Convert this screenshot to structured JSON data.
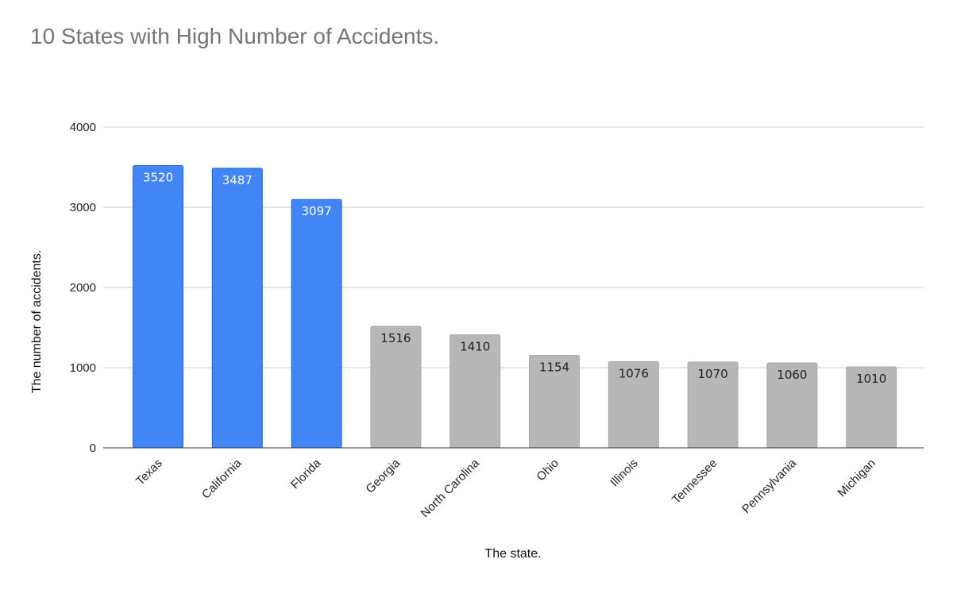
{
  "chart_data": {
    "type": "bar",
    "title": "10 States with High Number of Accidents.",
    "xlabel": "The state.",
    "ylabel": "The number of accidents.",
    "categories": [
      "Texas",
      "California",
      "Florida",
      "Georgia",
      "North Carolina",
      "Ohio",
      "Illinois",
      "Tennessee",
      "Pennsylvania",
      "Michigan"
    ],
    "values": [
      3520,
      3487,
      3097,
      1516,
      1410,
      1154,
      1076,
      1070,
      1060,
      1010
    ],
    "ylim": [
      0,
      4000
    ],
    "yticks": [
      "0",
      "1000",
      "2000",
      "3000",
      "4000"
    ],
    "grid": true,
    "legend": "none",
    "colors": {
      "highlight": "#4285f4",
      "highlight_border": "#1a66e0",
      "other": "#b7b7b7",
      "other_border": "#a8a8a8",
      "highlight_label": "#ffffff",
      "other_label": "#222222",
      "grid": "#cccccc",
      "title": "#757575"
    },
    "highlighted": [
      "Texas",
      "California",
      "Florida"
    ]
  }
}
